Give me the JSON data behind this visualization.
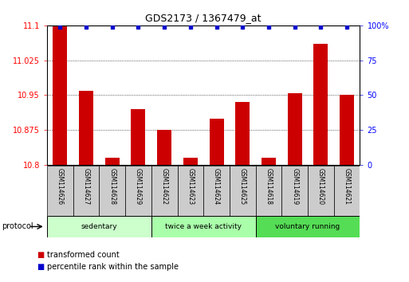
{
  "title": "GDS2173 / 1367479_at",
  "samples": [
    "GSM114626",
    "GSM114627",
    "GSM114628",
    "GSM114629",
    "GSM114622",
    "GSM114623",
    "GSM114624",
    "GSM114625",
    "GSM114618",
    "GSM114619",
    "GSM114620",
    "GSM114621"
  ],
  "transformed_count": [
    11.1,
    10.96,
    10.815,
    10.92,
    10.875,
    10.815,
    10.9,
    10.935,
    10.815,
    10.955,
    11.06,
    10.95
  ],
  "percentile_rank": [
    99,
    99,
    99,
    99,
    99,
    99,
    99,
    99,
    99,
    99,
    99,
    99
  ],
  "ylim_left": [
    10.8,
    11.1
  ],
  "ylim_right": [
    0,
    100
  ],
  "yticks_left": [
    10.8,
    10.875,
    10.95,
    11.025,
    11.1
  ],
  "yticks_right": [
    0,
    25,
    50,
    75,
    100
  ],
  "bar_color": "#cc0000",
  "dot_color": "#0000cc",
  "background_color": "#ffffff",
  "protocol_groups": [
    {
      "label": "sedentary",
      "start": 0,
      "end": 3,
      "color": "#ccffcc"
    },
    {
      "label": "twice a week activity",
      "start": 4,
      "end": 7,
      "color": "#aaffaa"
    },
    {
      "label": "voluntary running",
      "start": 8,
      "end": 11,
      "color": "#55dd55"
    }
  ],
  "legend_bar_label": "transformed count",
  "legend_dot_label": "percentile rank within the sample",
  "protocol_label": "protocol",
  "sample_box_color": "#cccccc"
}
